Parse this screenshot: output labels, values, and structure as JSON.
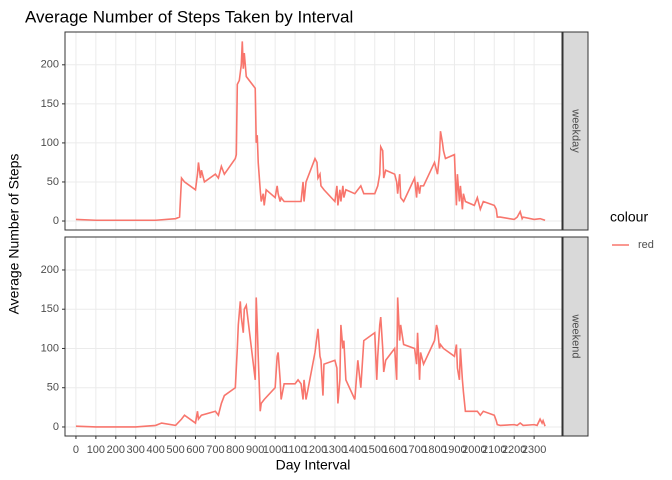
{
  "chart_data": {
    "type": "line",
    "title": "Average Number of Steps Taken by Interval",
    "xlabel": "Day Interval",
    "ylabel": "Average Number of Steps",
    "legend_title": "colour",
    "legend_position": "right",
    "series_name": "red",
    "color": "#F8766D",
    "grid": true,
    "xlim": [
      -55,
      2440
    ],
    "xticks": [
      0,
      100,
      200,
      300,
      400,
      500,
      600,
      700,
      800,
      900,
      1000,
      1100,
      1200,
      1300,
      1400,
      1500,
      1600,
      1700,
      1800,
      1900,
      2000,
      2100,
      2200,
      2300
    ],
    "ylim": [
      -11.5,
      242
    ],
    "yticks": [
      0,
      50,
      100,
      150,
      200
    ],
    "panels": [
      {
        "strip": "weekday",
        "x": [
          0,
          100,
          200,
          300,
          400,
          500,
          520,
          530,
          545,
          600,
          610,
          615,
          625,
          630,
          645,
          700,
          715,
          730,
          745,
          800,
          805,
          810,
          820,
          830,
          835,
          840,
          845,
          855,
          900,
          905,
          910,
          915,
          925,
          930,
          940,
          945,
          955,
          1000,
          1010,
          1015,
          1025,
          1030,
          1045,
          1100,
          1130,
          1140,
          1145,
          1155,
          1200,
          1210,
          1215,
          1225,
          1230,
          1245,
          1300,
          1310,
          1315,
          1325,
          1330,
          1340,
          1345,
          1355,
          1400,
          1415,
          1430,
          1445,
          1500,
          1515,
          1525,
          1530,
          1540,
          1545,
          1555,
          1600,
          1610,
          1615,
          1625,
          1630,
          1645,
          1700,
          1710,
          1715,
          1725,
          1730,
          1745,
          1800,
          1815,
          1825,
          1830,
          1840,
          1845,
          1855,
          1900,
          1910,
          1915,
          1925,
          1930,
          1940,
          1945,
          1955,
          2000,
          2015,
          2030,
          2045,
          2100,
          2110,
          2115,
          2130,
          2200,
          2215,
          2230,
          2240,
          2245,
          2300,
          2330,
          2355
        ],
        "values": [
          2,
          1,
          1,
          1,
          1,
          3,
          5,
          55,
          50,
          40,
          60,
          75,
          55,
          65,
          50,
          60,
          55,
          70,
          60,
          80,
          85,
          175,
          180,
          200,
          230,
          195,
          215,
          185,
          170,
          100,
          110,
          75,
          40,
          25,
          35,
          20,
          40,
          30,
          45,
          35,
          25,
          30,
          25,
          25,
          25,
          50,
          25,
          50,
          80,
          75,
          55,
          60,
          45,
          40,
          25,
          45,
          20,
          40,
          25,
          45,
          30,
          40,
          35,
          40,
          45,
          35,
          35,
          45,
          60,
          95,
          90,
          55,
          65,
          60,
          50,
          35,
          60,
          30,
          25,
          55,
          30,
          50,
          35,
          45,
          45,
          75,
          60,
          85,
          115,
          100,
          90,
          80,
          85,
          20,
          60,
          25,
          45,
          15,
          35,
          25,
          20,
          30,
          15,
          25,
          20,
          15,
          5,
          5,
          2,
          5,
          12,
          3,
          5,
          2,
          3,
          1
        ]
      },
      {
        "strip": "weekend",
        "x": [
          0,
          100,
          200,
          300,
          400,
          430,
          500,
          530,
          545,
          600,
          610,
          615,
          630,
          700,
          715,
          730,
          745,
          800,
          810,
          815,
          825,
          830,
          840,
          845,
          855,
          900,
          905,
          910,
          915,
          925,
          930,
          945,
          1000,
          1010,
          1015,
          1025,
          1030,
          1045,
          1100,
          1115,
          1130,
          1140,
          1145,
          1155,
          1200,
          1210,
          1215,
          1225,
          1230,
          1240,
          1245,
          1300,
          1310,
          1315,
          1325,
          1330,
          1340,
          1345,
          1355,
          1400,
          1415,
          1430,
          1445,
          1500,
          1510,
          1515,
          1525,
          1530,
          1540,
          1545,
          1555,
          1600,
          1610,
          1615,
          1625,
          1630,
          1645,
          1700,
          1710,
          1715,
          1725,
          1730,
          1745,
          1800,
          1810,
          1815,
          1825,
          1830,
          1845,
          1900,
          1910,
          1915,
          1925,
          1930,
          1940,
          1945,
          1955,
          2000,
          2015,
          2030,
          2045,
          2100,
          2110,
          2115,
          2130,
          2200,
          2215,
          2230,
          2245,
          2300,
          2315,
          2330,
          2340,
          2345,
          2355
        ],
        "values": [
          1,
          0,
          0,
          0,
          2,
          5,
          2,
          10,
          15,
          5,
          20,
          10,
          15,
          20,
          15,
          30,
          40,
          50,
          100,
          130,
          160,
          140,
          120,
          150,
          155,
          60,
          165,
          130,
          90,
          20,
          30,
          35,
          50,
          90,
          95,
          60,
          35,
          55,
          55,
          60,
          55,
          35,
          60,
          35,
          95,
          115,
          125,
          90,
          85,
          40,
          80,
          85,
          75,
          30,
          60,
          130,
          100,
          110,
          60,
          35,
          85,
          50,
          110,
          120,
          60,
          90,
          130,
          140,
          100,
          70,
          85,
          100,
          60,
          165,
          110,
          130,
          105,
          100,
          80,
          120,
          60,
          95,
          80,
          110,
          130,
          125,
          100,
          105,
          100,
          90,
          105,
          75,
          60,
          100,
          60,
          45,
          20,
          20,
          20,
          15,
          20,
          15,
          8,
          3,
          2,
          3,
          2,
          5,
          2,
          3,
          2,
          10,
          5,
          8,
          1
        ]
      }
    ]
  }
}
